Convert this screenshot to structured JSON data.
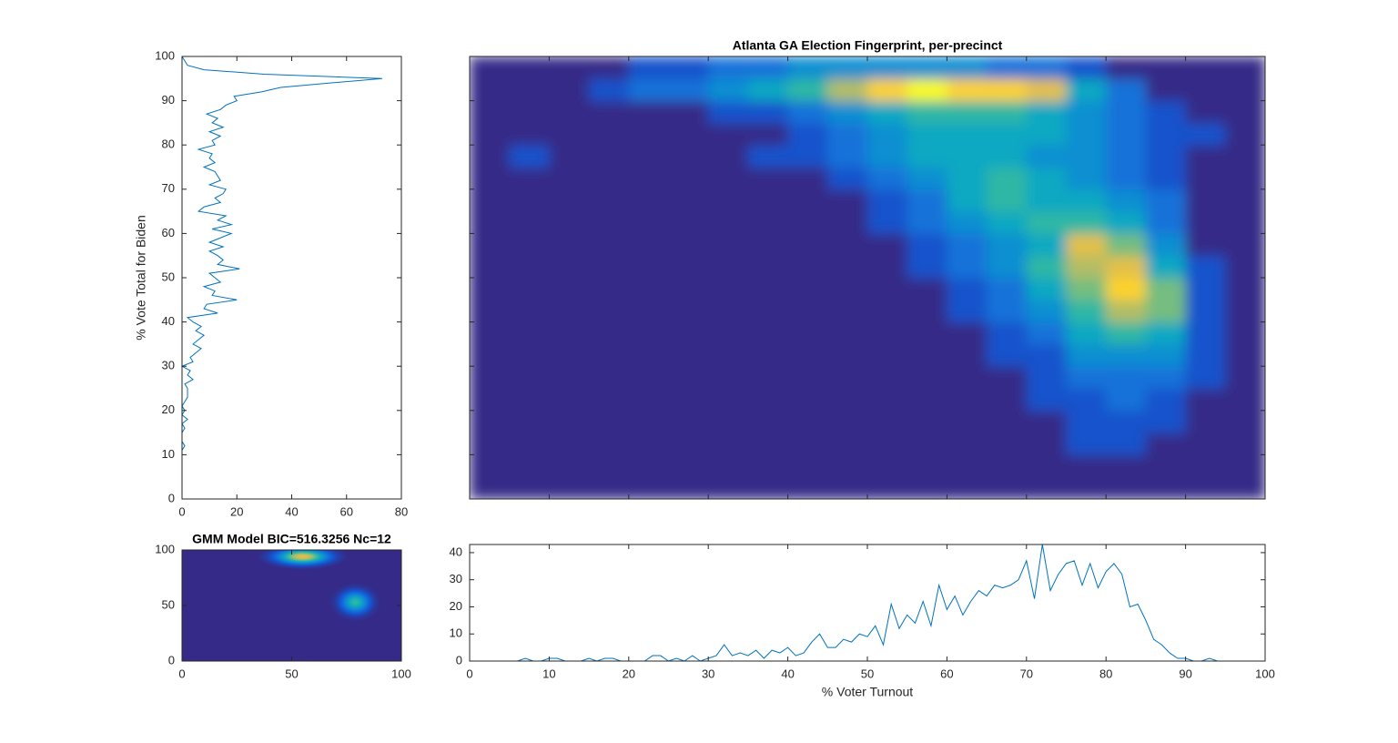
{
  "chart_data": [
    {
      "type": "line",
      "orientation": "vertical",
      "ylabel": "% Vote Total for Biden",
      "color": "#0072bd",
      "y": [
        0,
        1,
        2,
        3,
        4,
        5,
        6,
        7,
        8,
        9,
        10,
        11,
        12,
        13,
        14,
        15,
        16,
        17,
        18,
        19,
        20,
        21,
        22,
        23,
        24,
        25,
        26,
        27,
        28,
        29,
        30,
        31,
        32,
        33,
        34,
        35,
        36,
        37,
        38,
        39,
        40,
        41,
        42,
        43,
        44,
        45,
        46,
        47,
        48,
        49,
        50,
        51,
        52,
        53,
        54,
        55,
        56,
        57,
        58,
        59,
        60,
        61,
        62,
        63,
        64,
        65,
        66,
        67,
        68,
        69,
        70,
        71,
        72,
        73,
        74,
        75,
        76,
        77,
        78,
        79,
        80,
        81,
        82,
        83,
        84,
        85,
        86,
        87,
        88,
        89,
        90,
        91,
        92,
        93,
        94,
        95,
        96,
        97,
        98,
        99,
        100
      ],
      "values": [
        0,
        0,
        0,
        0,
        0,
        0,
        0,
        0,
        0,
        0,
        0,
        0,
        1,
        0,
        0,
        0,
        1,
        0,
        2,
        0,
        1,
        0,
        1,
        2,
        2,
        2,
        1,
        4,
        2,
        3,
        0,
        4,
        3,
        5,
        7,
        4,
        6,
        8,
        5,
        7,
        4,
        2,
        13,
        8,
        9,
        20,
        11,
        12,
        8,
        14,
        12,
        10,
        21,
        13,
        15,
        13,
        10,
        15,
        10,
        14,
        18,
        11,
        18,
        13,
        16,
        6,
        8,
        14,
        12,
        15,
        16,
        10,
        14,
        13,
        12,
        8,
        12,
        10,
        11,
        6,
        12,
        11,
        14,
        10,
        15,
        11,
        13,
        9,
        14,
        16,
        20,
        19,
        29,
        36,
        54,
        73,
        30,
        8,
        2,
        1,
        0
      ],
      "xlim": [
        0,
        80
      ],
      "ylim": [
        0,
        100
      ],
      "xticks": [
        0,
        20,
        40,
        60,
        80
      ],
      "yticks": [
        0,
        10,
        20,
        30,
        40,
        50,
        60,
        70,
        80,
        90,
        100
      ]
    },
    {
      "type": "heatmap",
      "title": "Atlanta GA Election Fingerprint, per-precinct",
      "colormap": "parula",
      "clim": [
        0,
        10
      ],
      "tick_labels": false,
      "z": [
        [
          0,
          0,
          0,
          0,
          0,
          0,
          0,
          0,
          0,
          0,
          0,
          0,
          0,
          0,
          0,
          0,
          0,
          0,
          0,
          0
        ],
        [
          0,
          0,
          0,
          0,
          0,
          0,
          0,
          0,
          0,
          0,
          0,
          0,
          0,
          0,
          0,
          0,
          0,
          0,
          0,
          0
        ],
        [
          0,
          0,
          0,
          0,
          0,
          0,
          0,
          0,
          0,
          0,
          0,
          0,
          0,
          0,
          0,
          1,
          1,
          0,
          0,
          0
        ],
        [
          0,
          0,
          0,
          0,
          0,
          0,
          0,
          0,
          0,
          0,
          0,
          0,
          0,
          0,
          0,
          1,
          1,
          1,
          0,
          0
        ],
        [
          0,
          0,
          0,
          0,
          0,
          0,
          0,
          0,
          0,
          0,
          0,
          0,
          0,
          0,
          1,
          1,
          2,
          1,
          0,
          0
        ],
        [
          0,
          0,
          0,
          0,
          0,
          0,
          0,
          0,
          0,
          0,
          0,
          0,
          0,
          0,
          1,
          2,
          2,
          2,
          1,
          0
        ],
        [
          0,
          0,
          0,
          0,
          0,
          0,
          0,
          0,
          0,
          0,
          0,
          0,
          0,
          1,
          1,
          3,
          3,
          3,
          1,
          0
        ],
        [
          0,
          0,
          0,
          0,
          0,
          0,
          0,
          0,
          0,
          0,
          0,
          0,
          0,
          1,
          2,
          4,
          5,
          4,
          1,
          0
        ],
        [
          0,
          0,
          0,
          0,
          0,
          0,
          0,
          0,
          0,
          0,
          0,
          0,
          1,
          2,
          3,
          5,
          7,
          6,
          1,
          0
        ],
        [
          0,
          0,
          0,
          0,
          0,
          0,
          0,
          0,
          0,
          0,
          0,
          0,
          1,
          2,
          4,
          6,
          9,
          6,
          1,
          0
        ],
        [
          0,
          0,
          0,
          0,
          0,
          0,
          0,
          0,
          0,
          0,
          0,
          1,
          2,
          3,
          5,
          7,
          8,
          4,
          1,
          0
        ],
        [
          0,
          0,
          0,
          0,
          0,
          0,
          0,
          0,
          0,
          0,
          0,
          1,
          2,
          3,
          4,
          8,
          6,
          3,
          0,
          0
        ],
        [
          0,
          0,
          0,
          0,
          0,
          0,
          0,
          0,
          0,
          0,
          1,
          2,
          3,
          4,
          5,
          5,
          4,
          2,
          0,
          0
        ],
        [
          0,
          0,
          0,
          0,
          0,
          0,
          0,
          0,
          0,
          0,
          1,
          2,
          4,
          5,
          4,
          4,
          3,
          2,
          0,
          0
        ],
        [
          0,
          0,
          0,
          0,
          0,
          0,
          0,
          0,
          0,
          1,
          2,
          3,
          4,
          5,
          4,
          3,
          2,
          1,
          0,
          0
        ],
        [
          0,
          1,
          0,
          0,
          0,
          0,
          0,
          1,
          1,
          2,
          3,
          4,
          4,
          4,
          3,
          3,
          2,
          1,
          0,
          0
        ],
        [
          0,
          0,
          0,
          0,
          0,
          0,
          0,
          0,
          1,
          2,
          3,
          4,
          4,
          4,
          4,
          3,
          2,
          1,
          1,
          0
        ],
        [
          0,
          0,
          0,
          0,
          0,
          0,
          1,
          1,
          2,
          3,
          4,
          5,
          5,
          5,
          4,
          3,
          2,
          1,
          0,
          0
        ],
        [
          0,
          0,
          0,
          1,
          2,
          2,
          3,
          4,
          5,
          7,
          9,
          10,
          9,
          9,
          8,
          4,
          2,
          0,
          0,
          0
        ],
        [
          0,
          0,
          0,
          0,
          1,
          1,
          2,
          2,
          3,
          3,
          3,
          3,
          3,
          2,
          2,
          1,
          0,
          0,
          0,
          0
        ]
      ],
      "xlim": [
        0,
        100
      ],
      "ylim": [
        0,
        100
      ],
      "xticks": [
        10,
        20,
        30,
        40,
        50,
        60,
        70,
        80,
        90
      ],
      "yticks": [
        10,
        20,
        30,
        40,
        50,
        60,
        70,
        80,
        90
      ]
    },
    {
      "type": "gmm",
      "title": "GMM Model BIC=516.3256 Nc=12",
      "colormap": "parula",
      "clim": [
        0,
        10
      ],
      "components": [
        {
          "mean": [
            55,
            94
          ],
          "sd": [
            7,
            4
          ],
          "peak": 8
        },
        {
          "mean": [
            79,
            53
          ],
          "sd": [
            4,
            6
          ],
          "peak": 5
        }
      ],
      "xlim": [
        0,
        100
      ],
      "ylim": [
        0,
        100
      ],
      "xticks": [
        0,
        50,
        100
      ],
      "yticks": [
        0,
        50,
        100
      ]
    },
    {
      "type": "line",
      "orientation": "horizontal",
      "xlabel": "% Voter Turnout",
      "color": "#0072bd",
      "x": [
        0,
        1,
        2,
        3,
        4,
        5,
        6,
        7,
        8,
        9,
        10,
        11,
        12,
        13,
        14,
        15,
        16,
        17,
        18,
        19,
        20,
        21,
        22,
        23,
        24,
        25,
        26,
        27,
        28,
        29,
        30,
        31,
        32,
        33,
        34,
        35,
        36,
        37,
        38,
        39,
        40,
        41,
        42,
        43,
        44,
        45,
        46,
        47,
        48,
        49,
        50,
        51,
        52,
        53,
        54,
        55,
        56,
        57,
        58,
        59,
        60,
        61,
        62,
        63,
        64,
        65,
        66,
        67,
        68,
        69,
        70,
        71,
        72,
        73,
        74,
        75,
        76,
        77,
        78,
        79,
        80,
        81,
        82,
        83,
        84,
        85,
        86,
        87,
        88,
        89,
        90,
        91,
        92,
        93,
        94,
        95,
        96,
        97,
        98,
        99,
        100
      ],
      "values": [
        0,
        0,
        0,
        0,
        0,
        0,
        0,
        1,
        0,
        0,
        1,
        1,
        0,
        0,
        0,
        1,
        0,
        1,
        1,
        0,
        0,
        0,
        0,
        2,
        2,
        0,
        1,
        0,
        2,
        0,
        1,
        2,
        6,
        2,
        3,
        2,
        4,
        1,
        4,
        3,
        5,
        2,
        3,
        7,
        10,
        5,
        5,
        8,
        7,
        10,
        9,
        13,
        6,
        21,
        12,
        17,
        14,
        22,
        13,
        28,
        19,
        24,
        17,
        22,
        26,
        24,
        28,
        27,
        28,
        30,
        37,
        23,
        43,
        26,
        32,
        36,
        37,
        28,
        36,
        27,
        33,
        36,
        32,
        20,
        21,
        15,
        8,
        6,
        3,
        1,
        1,
        0,
        0,
        1,
        0,
        0,
        0,
        0,
        0,
        0,
        0
      ],
      "xlim": [
        0,
        100
      ],
      "ylim": [
        0,
        43
      ],
      "xticks": [
        0,
        10,
        20,
        30,
        40,
        50,
        60,
        70,
        80,
        90,
        100
      ],
      "yticks": [
        0,
        10,
        20,
        30,
        40
      ]
    }
  ]
}
